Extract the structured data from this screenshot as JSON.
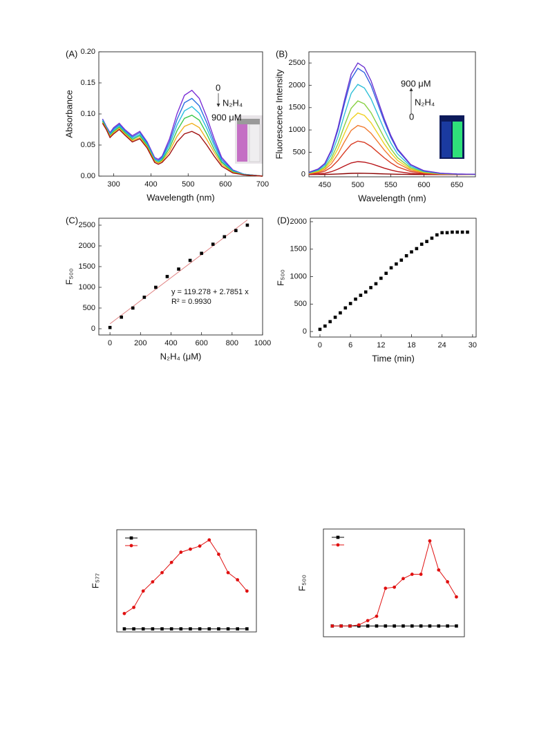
{
  "chart_data": [
    {
      "type": "line",
      "panel_label": "(A)",
      "xlabel": "Wavelength (nm)",
      "ylabel": "Absorbance",
      "xlim": [
        260,
        700
      ],
      "xticks": [
        300,
        400,
        500,
        600,
        700
      ],
      "ylim": [
        0,
        0.2
      ],
      "yticks": [
        {
          "value": 0,
          "label": "0.00"
        },
        0.05,
        {
          "value": 0.1,
          "label": "0.10"
        },
        0.15,
        {
          "value": 0.2,
          "label": "0.20"
        }
      ],
      "annotations": [
        "0",
        "N₂H₄",
        "900 μM"
      ],
      "x": [
        270,
        280,
        290,
        300,
        315,
        330,
        350,
        370,
        390,
        410,
        420,
        430,
        450,
        470,
        490,
        510,
        530,
        550,
        570,
        590,
        620,
        650,
        700
      ],
      "series": [
        {
          "color": "#7b2fd6",
          "values": [
            0.092,
            0.08,
            0.07,
            0.078,
            0.085,
            0.075,
            0.065,
            0.072,
            0.055,
            0.03,
            0.027,
            0.032,
            0.06,
            0.1,
            0.13,
            0.138,
            0.125,
            0.095,
            0.06,
            0.03,
            0.01,
            0.003,
            0
          ]
        },
        {
          "color": "#2a6fe0",
          "values": [
            0.091,
            0.079,
            0.068,
            0.076,
            0.083,
            0.073,
            0.063,
            0.07,
            0.053,
            0.028,
            0.025,
            0.03,
            0.055,
            0.091,
            0.118,
            0.125,
            0.113,
            0.086,
            0.054,
            0.027,
            0.009,
            0.003,
            0
          ]
        },
        {
          "color": "#29bde0",
          "values": [
            0.089,
            0.078,
            0.067,
            0.074,
            0.081,
            0.071,
            0.061,
            0.067,
            0.051,
            0.027,
            0.024,
            0.028,
            0.05,
            0.082,
            0.105,
            0.112,
            0.101,
            0.077,
            0.049,
            0.024,
            0.008,
            0.003,
            0
          ]
        },
        {
          "color": "#3cc84a",
          "values": [
            0.088,
            0.077,
            0.065,
            0.072,
            0.079,
            0.07,
            0.059,
            0.065,
            0.049,
            0.025,
            0.022,
            0.026,
            0.045,
            0.073,
            0.093,
            0.098,
            0.09,
            0.068,
            0.043,
            0.022,
            0.007,
            0.002,
            0
          ]
        },
        {
          "color": "#f0b020",
          "values": [
            0.086,
            0.076,
            0.064,
            0.07,
            0.077,
            0.068,
            0.057,
            0.062,
            0.047,
            0.024,
            0.021,
            0.024,
            0.04,
            0.064,
            0.08,
            0.085,
            0.078,
            0.059,
            0.038,
            0.019,
            0.006,
            0.002,
            0
          ]
        },
        {
          "color": "#a01010",
          "values": [
            0.085,
            0.075,
            0.062,
            0.068,
            0.075,
            0.066,
            0.055,
            0.06,
            0.045,
            0.022,
            0.019,
            0.022,
            0.035,
            0.055,
            0.068,
            0.072,
            0.066,
            0.05,
            0.032,
            0.016,
            0.005,
            0.002,
            0
          ]
        }
      ]
    },
    {
      "type": "line",
      "panel_label": "(B)",
      "xlabel": "Wavelength (nm)",
      "ylabel": "Fluorescence Intensity",
      "xlim": [
        426,
        678
      ],
      "xticks": [
        450,
        500,
        550,
        600,
        650
      ],
      "ylim": [
        -50,
        2750
      ],
      "yticks": [
        0,
        500,
        1000,
        1500,
        2000,
        2500
      ],
      "annotations": [
        "900 μM",
        "N₂H₄",
        "0"
      ],
      "x": [
        426,
        440,
        450,
        460,
        470,
        480,
        490,
        500,
        510,
        520,
        530,
        540,
        550,
        560,
        580,
        600,
        625,
        650,
        678
      ],
      "series": [
        {
          "color": "#8b0000",
          "values": [
            1,
            2,
            3,
            7,
            13,
            20,
            27,
            30,
            29,
            25,
            20,
            15,
            11,
            7,
            3,
            1,
            0,
            0,
            0
          ]
        },
        {
          "color": "#b81418",
          "values": [
            6,
            15,
            29,
            64,
            122,
            194,
            261,
            290,
            278,
            244,
            194,
            145,
            102,
            67,
            26,
            10,
            3,
            1,
            1
          ]
        },
        {
          "color": "#d83a22",
          "values": [
            15,
            38,
            75,
            165,
            315,
            503,
            675,
            750,
            720,
            630,
            503,
            375,
            263,
            173,
            68,
            26,
            9,
            4,
            2
          ]
        },
        {
          "color": "#f07a30",
          "values": [
            22,
            55,
            110,
            242,
            462,
            737,
            990,
            1100,
            1056,
            924,
            737,
            550,
            385,
            253,
            99,
            39,
            13,
            6,
            2
          ]
        },
        {
          "color": "#f0d020",
          "values": [
            28,
            69,
            138,
            304,
            580,
            925,
            1242,
            1380,
            1325,
            1159,
            925,
            690,
            483,
            317,
            124,
            48,
            17,
            7,
            3
          ]
        },
        {
          "color": "#86d040",
          "values": [
            33,
            83,
            165,
            363,
            693,
            1106,
            1485,
            1650,
            1584,
            1386,
            1106,
            825,
            578,
            380,
            149,
            58,
            20,
            8,
            3
          ]
        },
        {
          "color": "#30c0d8",
          "values": [
            40,
            101,
            202,
            444,
            848,
            1353,
            1818,
            2020,
            1939,
            1697,
            1353,
            1010,
            707,
            465,
            182,
            71,
            24,
            10,
            4
          ]
        },
        {
          "color": "#3060e0",
          "values": [
            48,
            119,
            238,
            524,
            1000,
            1595,
            2142,
            2380,
            2285,
            1999,
            1595,
            1190,
            833,
            547,
            214,
            83,
            29,
            12,
            5
          ]
        },
        {
          "color": "#6a30d0",
          "values": [
            50,
            125,
            250,
            550,
            1050,
            1675,
            2250,
            2500,
            2400,
            2100,
            1675,
            1250,
            875,
            575,
            225,
            88,
            30,
            13,
            5
          ]
        }
      ]
    },
    {
      "type": "scatter",
      "panel_label": "(C)",
      "xlabel": "N₂H₄ (μM)",
      "ylabel": "F₅₀₀",
      "xlim": [
        -73,
        1000
      ],
      "xticks": [
        0,
        200,
        400,
        600,
        800,
        1000
      ],
      "ylim": [
        -150,
        2667
      ],
      "yticks": [
        0,
        500,
        1000,
        1500,
        2000,
        2500
      ],
      "annotations": [
        "y = 119.278 + 2.7851 x",
        "R² = 0.9930"
      ],
      "color": "#000000",
      "x": [
        0,
        75,
        150,
        225,
        300,
        375,
        450,
        525,
        600,
        675,
        750,
        825,
        900
      ],
      "values": [
        30,
        280,
        500,
        760,
        1000,
        1260,
        1440,
        1650,
        1820,
        2040,
        2220,
        2370,
        2500
      ],
      "fit": {
        "color": "#e08080",
        "x": [
          0,
          900
        ],
        "values": [
          119.278,
          2625.868
        ]
      }
    },
    {
      "type": "scatter",
      "panel_label": "(D)",
      "xlabel": "Time (min)",
      "ylabel": "F₅₀₀",
      "xlim": [
        -1.9,
        30.7
      ],
      "xticks": [
        0,
        6,
        12,
        18,
        24,
        30
      ],
      "ylim": [
        -100,
        2063
      ],
      "yticks": [
        0,
        500,
        1000,
        1500,
        2000
      ],
      "color": "#000000",
      "x": [
        0,
        1,
        2,
        3,
        4,
        5,
        6,
        7,
        8,
        9,
        10,
        11,
        12,
        13,
        14,
        15,
        16,
        17,
        18,
        19,
        20,
        21,
        22,
        23,
        24,
        25,
        26,
        27,
        28,
        29
      ],
      "values": [
        40,
        100,
        180,
        260,
        340,
        430,
        510,
        590,
        660,
        720,
        800,
        870,
        970,
        1060,
        1160,
        1230,
        1300,
        1380,
        1450,
        1510,
        1590,
        1640,
        1700,
        1760,
        1800,
        1800,
        1810,
        1810,
        1810,
        1810
      ]
    },
    {
      "type": "line",
      "ylabel": "F₅₇₇",
      "markers": true,
      "xlim": [
        0.2,
        15
      ],
      "ylim": [
        0,
        100
      ],
      "x": [
        1,
        2,
        3,
        4,
        5,
        6,
        7,
        8,
        9,
        10,
        11,
        12,
        13,
        14
      ],
      "series": [
        {
          "color": "#000000",
          "marker": "square",
          "values": [
            3,
            3,
            3,
            3,
            3,
            3,
            3,
            3,
            3,
            3,
            3,
            3,
            3,
            3
          ]
        },
        {
          "color": "#e01010",
          "marker": "circle",
          "values": [
            18,
            24,
            40,
            49,
            58,
            68,
            78,
            81,
            84,
            90,
            76,
            58,
            51,
            40
          ]
        }
      ]
    },
    {
      "type": "line",
      "ylabel": "F₅₀₀",
      "markers": true,
      "xlim": [
        0,
        15.9
      ],
      "ylim": [
        0,
        100
      ],
      "x": [
        1,
        2,
        3,
        4,
        5,
        6,
        7,
        8,
        9,
        10,
        11,
        12,
        13,
        14,
        15
      ],
      "series": [
        {
          "color": "#000000",
          "marker": "square",
          "values": [
            10,
            10,
            10,
            10,
            10,
            10,
            10,
            10,
            10,
            10,
            10,
            10,
            10,
            10,
            10
          ]
        },
        {
          "color": "#e01010",
          "marker": "circle",
          "values": [
            10,
            10,
            10,
            11,
            15,
            19,
            45,
            46,
            54,
            58,
            58,
            89,
            62,
            51,
            37
          ]
        }
      ]
    }
  ]
}
